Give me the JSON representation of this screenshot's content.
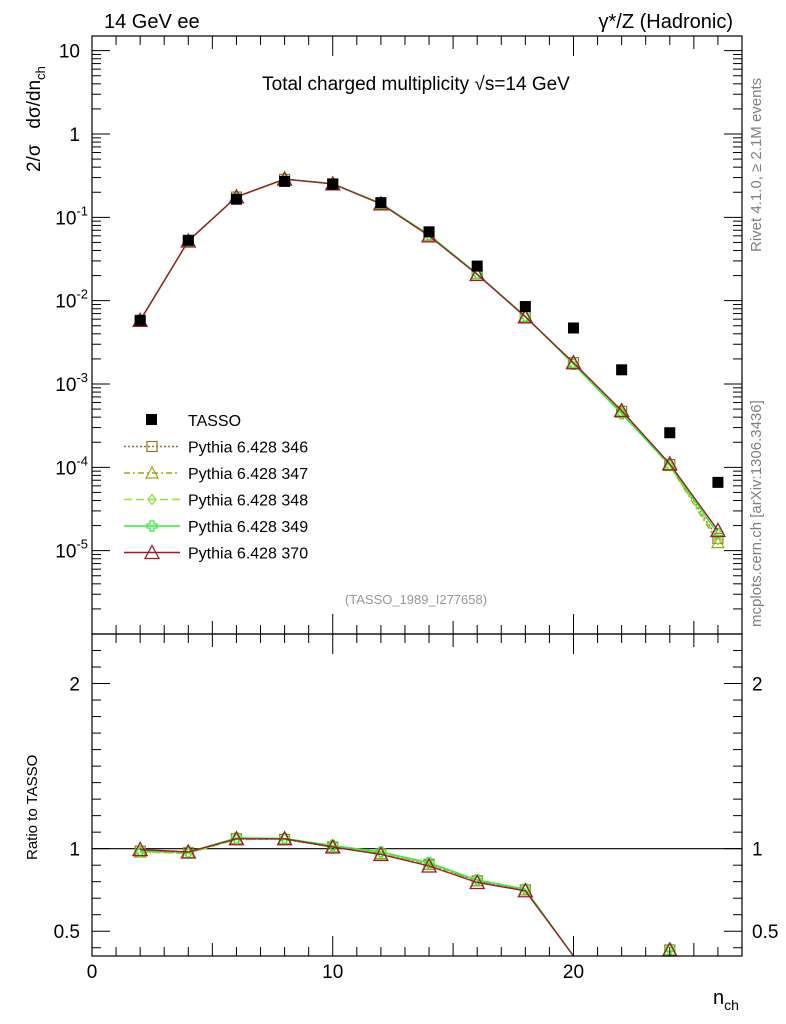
{
  "header": {
    "left": "14 GeV ee",
    "right": "γ*/Z (Hadronic)"
  },
  "side_labels": {
    "top": "Rivet 4.1.0, ≥ 2.1M events",
    "bottom": "mcplots.cern.ch [arXiv:1306.3436]"
  },
  "chart_data": [
    {
      "type": "scatter",
      "panel": "main",
      "title": "Total charged multiplicity √s=14 GeV",
      "ylabel": "2/σ dσ/dn_ch",
      "xlabel": "n_ch",
      "yscale": "log",
      "ylim": [
        1e-06,
        15
      ],
      "xlim": [
        0,
        27
      ],
      "watermark": "(TASSO_1989_I277658)",
      "x_ticks": [
        "0",
        "10",
        "20"
      ],
      "y_ticks": [
        {
          "base": "10",
          "exp": "-5",
          "value": 1e-05
        },
        {
          "base": "10",
          "exp": "-4",
          "value": 0.0001
        },
        {
          "base": "10",
          "exp": "-3",
          "value": 0.001
        },
        {
          "base": "10",
          "exp": "-2",
          "value": 0.01
        },
        {
          "base": "10",
          "exp": "-1",
          "value": 0.1
        },
        {
          "base": "1",
          "exp": "",
          "value": 1
        },
        {
          "base": "10",
          "exp": "",
          "value": 10
        }
      ],
      "data": {
        "name": "TASSO",
        "x": [
          2,
          4,
          6,
          8,
          10,
          12,
          14,
          16,
          18,
          20,
          22,
          24,
          26
        ],
        "y": [
          0.0058,
          0.053,
          0.165,
          0.27,
          0.25,
          0.15,
          0.067,
          0.026,
          0.0085,
          0.0047,
          0.00148,
          0.00026,
          6.6e-05
        ]
      },
      "series": [
        {
          "name": "Pythia 6.428 346",
          "color": "#a0702d",
          "dash": "2,2",
          "marker": "square",
          "x": [
            2,
            4,
            6,
            8,
            10,
            12,
            14,
            16,
            18,
            20,
            22,
            24,
            26
          ],
          "y": [
            0.0057,
            0.052,
            0.175,
            0.285,
            0.253,
            0.145,
            0.061,
            0.021,
            0.0064,
            0.0018,
            0.00047,
            0.000108,
            1.4e-05
          ]
        },
        {
          "name": "Pythia 6.428 347",
          "color": "#9aaa12",
          "dash": "6,3,2,3",
          "marker": "triangle",
          "x": [
            2,
            4,
            6,
            8,
            10,
            12,
            14,
            16,
            18,
            20,
            22,
            24,
            26
          ],
          "y": [
            0.0057,
            0.052,
            0.175,
            0.287,
            0.253,
            0.146,
            0.061,
            0.021,
            0.0064,
            0.00178,
            0.00046,
            0.000105,
            1.25e-05
          ]
        },
        {
          "name": "Pythia 6.428 348",
          "color": "#8fe03a",
          "dash": "8,4",
          "marker": "diamond",
          "x": [
            2,
            4,
            6,
            8,
            10,
            12,
            14,
            16,
            18,
            20,
            22,
            24,
            26
          ],
          "y": [
            0.0057,
            0.052,
            0.174,
            0.286,
            0.254,
            0.146,
            0.061,
            0.021,
            0.0064,
            0.00175,
            0.00045,
            0.000104,
            1.35e-05
          ]
        },
        {
          "name": "Pythia 6.428 349",
          "color": "#33ee33",
          "dash": "",
          "marker": "cross",
          "x": [
            2,
            4,
            6,
            8,
            10,
            12,
            14,
            16,
            18,
            20,
            22,
            24,
            26
          ],
          "y": [
            0.0057,
            0.052,
            0.176,
            0.288,
            0.255,
            0.147,
            0.062,
            0.021,
            0.0065,
            0.00172,
            0.00044,
            0.000106,
            1.6e-05
          ]
        },
        {
          "name": "Pythia 6.428 370",
          "color": "#9b1b30",
          "dash": "",
          "marker": "triangle-open-large",
          "x": [
            2,
            4,
            6,
            8,
            10,
            12,
            14,
            16,
            18,
            20,
            22,
            24,
            26
          ],
          "y": [
            0.0058,
            0.052,
            0.176,
            0.288,
            0.252,
            0.145,
            0.06,
            0.0206,
            0.0064,
            0.0018,
            0.00048,
            0.00011,
            1.75e-05
          ]
        }
      ]
    },
    {
      "type": "line",
      "panel": "ratio",
      "ylabel": "Ratio to TASSO",
      "xlabel": "n_ch",
      "ylim": [
        0.35,
        2.3
      ],
      "xlim": [
        0,
        27
      ],
      "x_ticks": [
        "0",
        "10",
        "20"
      ],
      "y_ticks": [
        "0.5",
        "1",
        "2"
      ],
      "reference": 1,
      "series": [
        {
          "name": "Pythia 6.428 346",
          "x": [
            2,
            4,
            6,
            8,
            10,
            12,
            14,
            16,
            18,
            20,
            24
          ],
          "y": [
            0.985,
            0.975,
            1.06,
            1.055,
            1.01,
            0.97,
            0.905,
            0.805,
            0.75,
            0.35,
            0.38
          ]
        },
        {
          "name": "Pythia 6.428 347",
          "x": [
            2,
            4,
            6,
            8,
            10,
            12,
            14,
            16,
            18,
            20,
            24
          ],
          "y": [
            0.98,
            0.975,
            1.06,
            1.06,
            1.01,
            0.97,
            0.905,
            0.805,
            0.75,
            0.35,
            0.37
          ]
        },
        {
          "name": "Pythia 6.428 348",
          "x": [
            2,
            4,
            6,
            8,
            10,
            12,
            14,
            16,
            18,
            20,
            24
          ],
          "y": [
            0.98,
            0.97,
            1.055,
            1.058,
            1.015,
            0.975,
            0.91,
            0.81,
            0.755,
            0.35,
            0.4
          ]
        },
        {
          "name": "Pythia 6.428 349",
          "x": [
            2,
            4,
            6,
            8,
            10,
            12,
            14,
            16,
            18,
            20,
            24
          ],
          "y": [
            0.985,
            0.98,
            1.065,
            1.062,
            1.02,
            0.98,
            0.915,
            0.81,
            0.755,
            0.35,
            0.39
          ]
        },
        {
          "name": "Pythia 6.428 370",
          "x": [
            2,
            4,
            6,
            8,
            10,
            12,
            14,
            16,
            18,
            20,
            24
          ],
          "y": [
            0.995,
            0.98,
            1.06,
            1.06,
            1.01,
            0.965,
            0.895,
            0.795,
            0.745,
            0.35,
            0.36
          ]
        }
      ]
    }
  ]
}
